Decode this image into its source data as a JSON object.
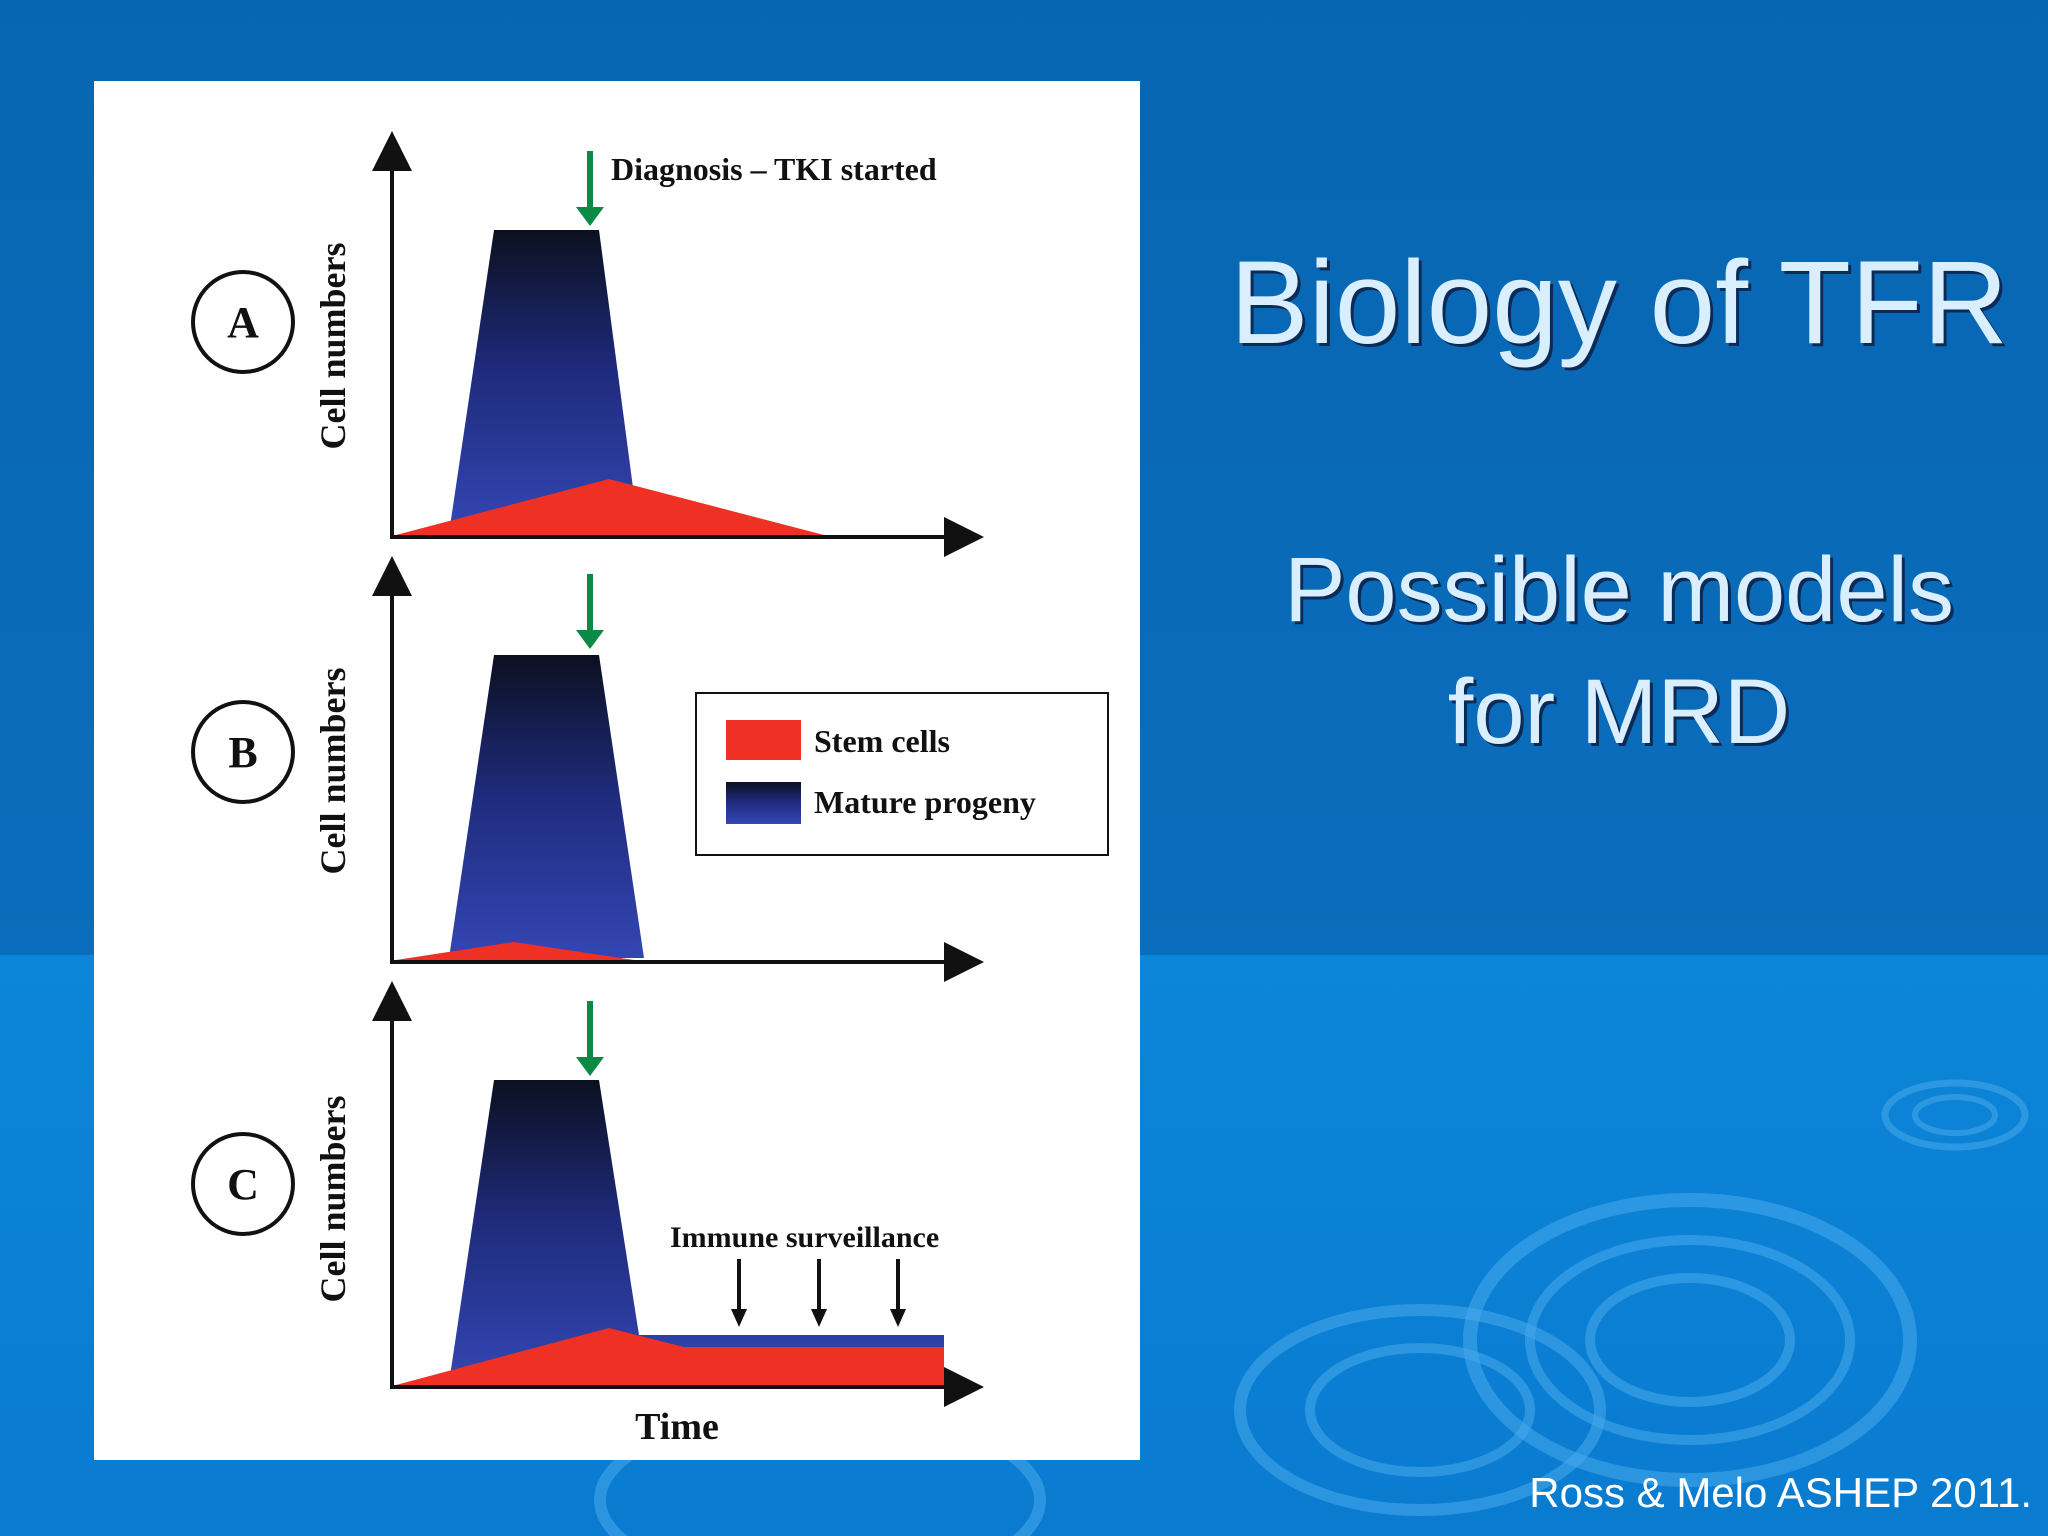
{
  "slide": {
    "title": "Biology of TFR",
    "subtitle_line1": "Possible models",
    "subtitle_line2": "for MRD",
    "citation": "Ross & Melo ASHEP 2011."
  },
  "figure": {
    "panels": [
      {
        "label": "A",
        "ylabel": "Cell numbers",
        "annotation": "Diagnosis – TKI started"
      },
      {
        "label": "B",
        "ylabel": "Cell numbers"
      },
      {
        "label": "C",
        "ylabel": "Cell numbers",
        "annotation": "Immune surveillance",
        "xlabel": "Time"
      }
    ],
    "legend": [
      {
        "label": "Stem cells",
        "color": "#ee3124"
      },
      {
        "label": "Mature progeny",
        "color": "#2b3fa8"
      }
    ],
    "colors": {
      "arrow": "#0a8a45",
      "stem": "#ee3124",
      "progeny_top": "#0c1020",
      "progeny_bottom": "#3446b4"
    }
  }
}
